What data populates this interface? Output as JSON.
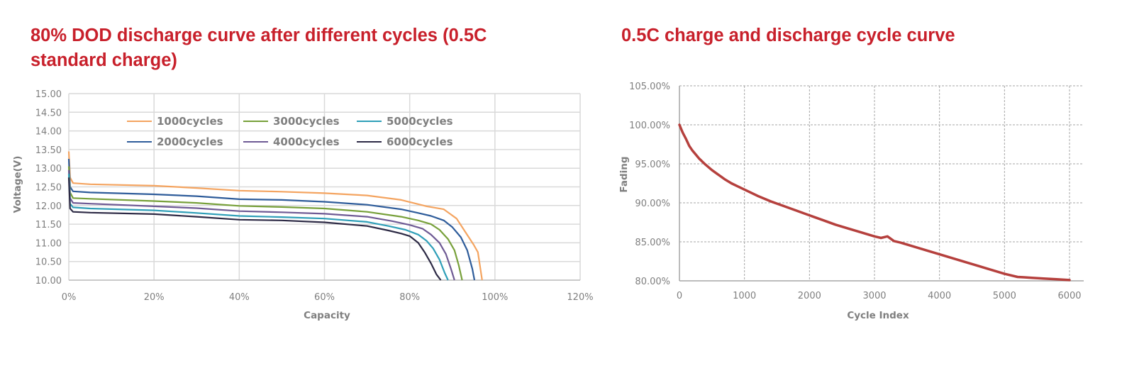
{
  "chart_data": [
    {
      "type": "line",
      "title": "80% DOD discharge curve after different cycles (0.5C standard charge)",
      "xlabel": "Capacity",
      "ylabel": "Voltage(V)",
      "xlim": [
        0,
        120
      ],
      "ylim": [
        10.0,
        15.0
      ],
      "x_unit": "%",
      "grid": true,
      "legend": "top-center",
      "x_ticks": [
        0,
        20,
        40,
        60,
        80,
        100,
        120
      ],
      "x_tick_labels": [
        "0%",
        "20%",
        "40%",
        "60%",
        "80%",
        "100%",
        "120%"
      ],
      "y_ticks": [
        10.0,
        10.5,
        11.0,
        11.5,
        12.0,
        12.5,
        13.0,
        13.5,
        14.0,
        14.5,
        15.0
      ],
      "y_tick_labels": [
        "10.00",
        "10.50",
        "11.00",
        "11.50",
        "12.00",
        "12.50",
        "13.00",
        "13.50",
        "14.00",
        "14.50",
        "15.00"
      ],
      "series": [
        {
          "name": "1000cycles",
          "color": "#f4a460",
          "x": [
            0,
            0.3,
            1,
            5,
            20,
            30,
            40,
            50,
            60,
            70,
            78,
            84,
            88,
            91,
            93,
            95,
            96,
            96.6,
            97.0
          ],
          "y": [
            13.45,
            12.75,
            12.6,
            12.57,
            12.53,
            12.47,
            12.4,
            12.37,
            12.33,
            12.27,
            12.15,
            11.98,
            11.9,
            11.65,
            11.3,
            10.95,
            10.75,
            10.3,
            10.0
          ]
        },
        {
          "name": "2000cycles",
          "color": "#2e5c9a",
          "x": [
            0,
            0.3,
            1,
            5,
            20,
            30,
            40,
            50,
            60,
            70,
            78,
            82,
            85,
            88,
            90,
            92,
            93.5,
            94.7,
            95.2
          ],
          "y": [
            13.25,
            12.5,
            12.38,
            12.35,
            12.3,
            12.25,
            12.17,
            12.15,
            12.1,
            12.02,
            11.9,
            11.8,
            11.72,
            11.6,
            11.42,
            11.15,
            10.8,
            10.3,
            10.0
          ]
        },
        {
          "name": "3000cycles",
          "color": "#77a03a",
          "x": [
            0,
            0.3,
            1,
            5,
            20,
            30,
            40,
            50,
            60,
            70,
            78,
            82,
            85,
            87,
            89,
            90.5,
            91.5,
            92.3
          ],
          "y": [
            13.05,
            12.35,
            12.2,
            12.18,
            12.12,
            12.07,
            11.99,
            11.96,
            11.92,
            11.83,
            11.7,
            11.6,
            11.5,
            11.35,
            11.1,
            10.8,
            10.4,
            10.0
          ]
        },
        {
          "name": "4000cycles",
          "color": "#6e5a94",
          "x": [
            0,
            0.3,
            1,
            5,
            20,
            30,
            40,
            50,
            60,
            70,
            76,
            80,
            83,
            85,
            87,
            88.5,
            89.7,
            90.5
          ],
          "y": [
            12.95,
            12.2,
            12.07,
            12.05,
            11.98,
            11.93,
            11.85,
            11.82,
            11.78,
            11.7,
            11.58,
            11.48,
            11.38,
            11.22,
            11.0,
            10.7,
            10.3,
            10.0
          ]
        },
        {
          "name": "5000cycles",
          "color": "#2f9fb8",
          "x": [
            0,
            0.3,
            1,
            5,
            20,
            30,
            40,
            50,
            60,
            70,
            75,
            79,
            82,
            84,
            85.5,
            87,
            88.2,
            89.0
          ],
          "y": [
            12.85,
            12.05,
            11.95,
            11.92,
            11.87,
            11.8,
            11.72,
            11.69,
            11.65,
            11.56,
            11.45,
            11.35,
            11.22,
            11.05,
            10.85,
            10.55,
            10.2,
            10.0
          ]
        },
        {
          "name": "6000cycles",
          "color": "#2d2a45",
          "x": [
            0,
            0.3,
            1,
            5,
            20,
            30,
            40,
            50,
            60,
            70,
            75,
            78,
            80,
            82,
            83.5,
            85,
            86.3,
            87.3
          ],
          "y": [
            12.75,
            11.92,
            11.83,
            11.81,
            11.77,
            11.7,
            11.62,
            11.6,
            11.55,
            11.45,
            11.33,
            11.25,
            11.18,
            11.0,
            10.75,
            10.45,
            10.15,
            10.0
          ]
        }
      ]
    },
    {
      "type": "line",
      "title": "0.5C charge and discharge cycle curve",
      "xlabel": "Cycle Index",
      "ylabel": "Fading",
      "xlim": [
        0,
        6200
      ],
      "ylim": [
        80,
        105
      ],
      "y_unit": "%",
      "grid": true,
      "grid_style": "dashed",
      "legend": "none",
      "x_ticks": [
        0,
        1000,
        2000,
        3000,
        4000,
        5000,
        6000
      ],
      "x_tick_labels": [
        "0",
        "1000",
        "2000",
        "3000",
        "4000",
        "5000",
        "6000"
      ],
      "y_ticks": [
        80,
        85,
        90,
        95,
        100,
        105
      ],
      "y_tick_labels": [
        "80.00%",
        "85.00%",
        "90.00%",
        "95.00%",
        "100.00%",
        "105.00%"
      ],
      "series": [
        {
          "name": "Fading",
          "color": "#b5403d",
          "x": [
            0,
            50,
            100,
            150,
            200,
            300,
            400,
            500,
            600,
            700,
            800,
            900,
            1000,
            1200,
            1400,
            1600,
            1800,
            2000,
            2200,
            2400,
            2600,
            2800,
            3000,
            3100,
            3200,
            3300,
            3400,
            3600,
            3800,
            4000,
            4200,
            4400,
            4600,
            4800,
            5000,
            5200,
            5300,
            5400,
            5600,
            5800,
            6000
          ],
          "y": [
            100.0,
            99.0,
            98.2,
            97.3,
            96.7,
            95.7,
            94.9,
            94.2,
            93.6,
            93.0,
            92.5,
            92.1,
            91.7,
            90.9,
            90.2,
            89.6,
            89.0,
            88.4,
            87.8,
            87.2,
            86.7,
            86.2,
            85.7,
            85.5,
            85.7,
            85.1,
            84.9,
            84.4,
            83.9,
            83.4,
            82.9,
            82.4,
            81.9,
            81.4,
            80.9,
            80.5,
            80.45,
            80.4,
            80.3,
            80.2,
            80.1
          ]
        }
      ]
    }
  ]
}
